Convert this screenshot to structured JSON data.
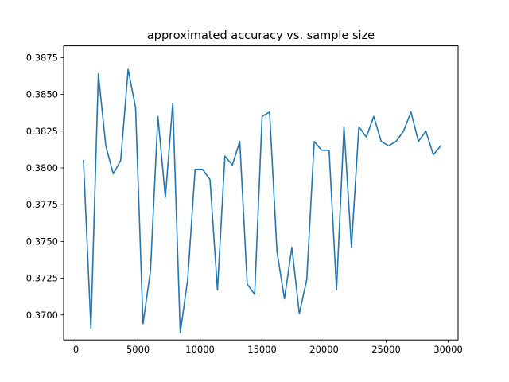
{
  "chart_data": {
    "type": "line",
    "title": "approximated accuracy vs. sample size",
    "xlabel": "",
    "ylabel": "",
    "xlim": [
      -1000,
      30800
    ],
    "ylim": [
      0.3683,
      0.3883
    ],
    "x_ticks": [
      0,
      5000,
      10000,
      15000,
      20000,
      25000,
      30000
    ],
    "x_tick_labels": [
      "0",
      "5000",
      "10000",
      "15000",
      "20000",
      "25000",
      "30000"
    ],
    "y_ticks": [
      0.37,
      0.3725,
      0.375,
      0.3775,
      0.38,
      0.3825,
      0.385,
      0.3875
    ],
    "y_tick_labels": [
      "0.3700",
      "0.3725",
      "0.3750",
      "0.3775",
      "0.3800",
      "0.3825",
      "0.3850",
      "0.3875"
    ],
    "grid": false,
    "series": [
      {
        "color": "#1f77b4",
        "x": [
          600,
          1200,
          1800,
          2400,
          3000,
          3600,
          4200,
          4800,
          5400,
          6000,
          6600,
          7200,
          7800,
          8400,
          9000,
          9600,
          10200,
          10800,
          11400,
          12000,
          12600,
          13200,
          13800,
          14400,
          15000,
          15600,
          16200,
          16800,
          17400,
          18000,
          18600,
          19200,
          19800,
          20400,
          21000,
          21600,
          22200,
          22800,
          23400,
          24000,
          24600,
          25200,
          25800,
          26400,
          27000,
          27600,
          28200,
          28800,
          29400
        ],
        "y": [
          0.3805,
          0.3691,
          0.3864,
          0.3815,
          0.3796,
          0.3805,
          0.3867,
          0.3841,
          0.3694,
          0.373,
          0.3835,
          0.378,
          0.3844,
          0.3688,
          0.3724,
          0.3799,
          0.3799,
          0.3792,
          0.3717,
          0.3808,
          0.3802,
          0.3818,
          0.3721,
          0.3714,
          0.3835,
          0.3838,
          0.3743,
          0.3711,
          0.3746,
          0.3701,
          0.3724,
          0.3818,
          0.3812,
          0.3812,
          0.3717,
          0.3828,
          0.3746,
          0.3828,
          0.3821,
          0.3835,
          0.3818,
          0.3815,
          0.3818,
          0.3825,
          0.3838,
          0.3818,
          0.3825,
          0.3809,
          0.3815
        ]
      }
    ]
  }
}
